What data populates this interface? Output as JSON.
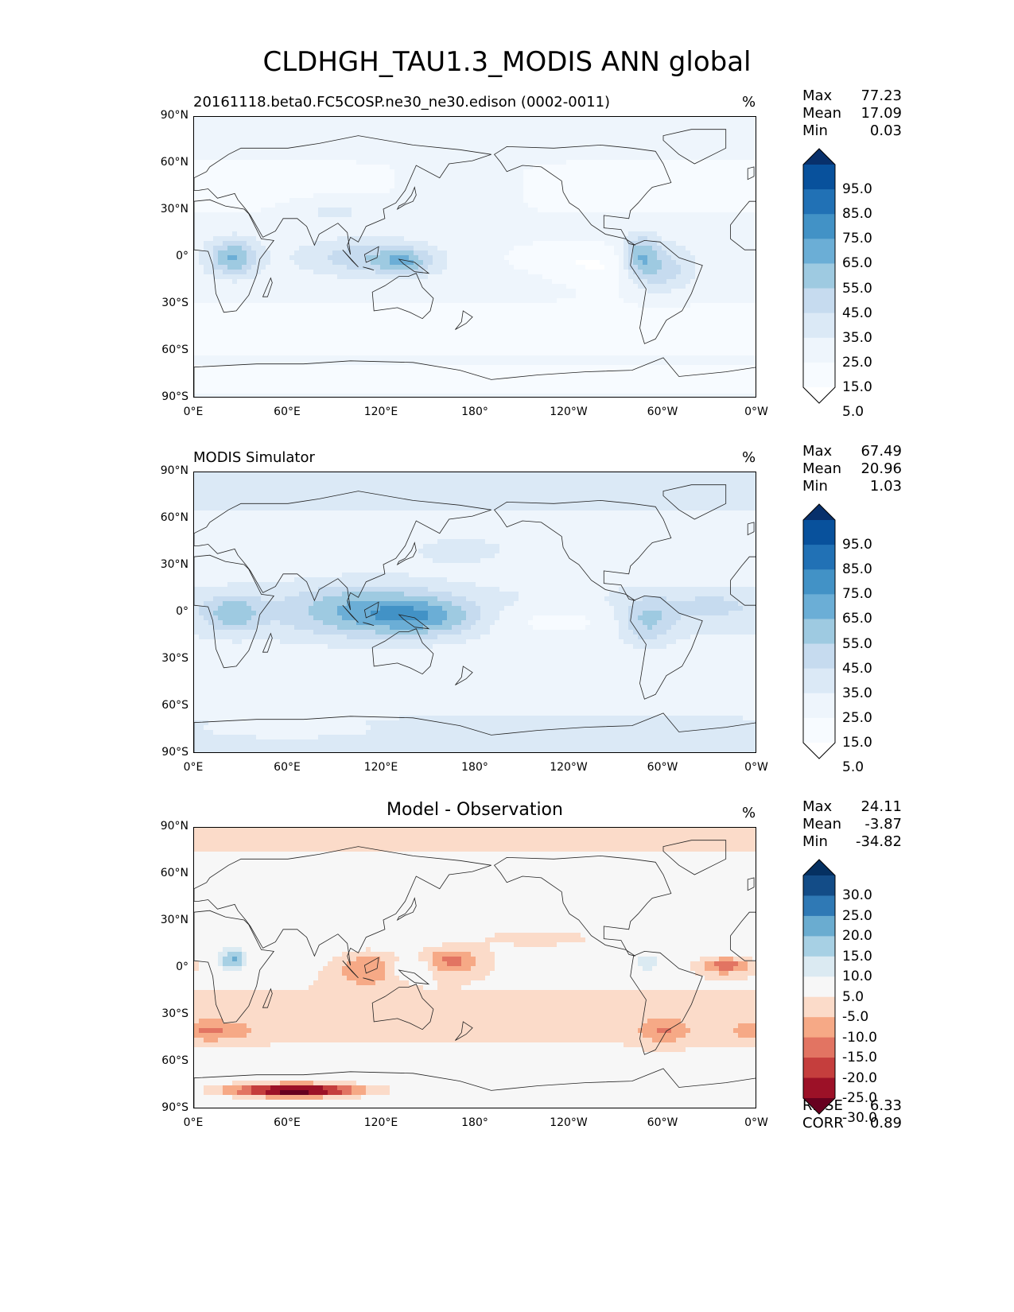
{
  "figure": {
    "title": "CLDHGH_TAU1.3_MODIS ANN global"
  },
  "chart_data": [
    {
      "type": "heatmap",
      "title": "20161118.beta0.FC5COSP.ne30_ne30.edison (0002-0011)",
      "units": "%",
      "stats": [
        {
          "label": "Max",
          "value": "77.23"
        },
        {
          "label": "Mean",
          "value": "17.09"
        },
        {
          "label": "Min",
          "value": "0.03"
        }
      ],
      "colorbar": {
        "levels": [
          "95.0",
          "85.0",
          "75.0",
          "65.0",
          "55.0",
          "45.0",
          "35.0",
          "25.0",
          "15.0",
          "5.0"
        ],
        "colors": [
          "#08306b",
          "#08519c",
          "#2171b5",
          "#4292c6",
          "#6baed6",
          "#9ecae1",
          "#c6dbef",
          "#dbe9f6",
          "#eef5fc",
          "#f7fbff",
          "#ffffff"
        ]
      },
      "x_ticks": [
        "0°E",
        "60°E",
        "120°E",
        "180°",
        "120°W",
        "60°W",
        "0°W"
      ],
      "y_ticks": [
        "90°N",
        "60°N",
        "30°N",
        "0°",
        "30°S",
        "60°S",
        "90°S"
      ]
    },
    {
      "type": "heatmap",
      "title": "MODIS Simulator",
      "units": "%",
      "stats": [
        {
          "label": "Max",
          "value": "67.49"
        },
        {
          "label": "Mean",
          "value": "20.96"
        },
        {
          "label": "Min",
          "value": "1.03"
        }
      ],
      "colorbar": {
        "levels": [
          "95.0",
          "85.0",
          "75.0",
          "65.0",
          "55.0",
          "45.0",
          "35.0",
          "25.0",
          "15.0",
          "5.0"
        ],
        "colors": [
          "#08306b",
          "#08519c",
          "#2171b5",
          "#4292c6",
          "#6baed6",
          "#9ecae1",
          "#c6dbef",
          "#dbe9f6",
          "#eef5fc",
          "#f7fbff",
          "#ffffff"
        ]
      },
      "x_ticks": [
        "0°E",
        "60°E",
        "120°E",
        "180°",
        "120°W",
        "60°W",
        "0°W"
      ],
      "y_ticks": [
        "90°N",
        "60°N",
        "30°N",
        "0°",
        "30°S",
        "60°S",
        "90°S"
      ]
    },
    {
      "type": "heatmap",
      "title": "Model - Observation",
      "units": "%",
      "stats": [
        {
          "label": "Max",
          "value": "24.11"
        },
        {
          "label": "Mean",
          "value": "-3.87"
        },
        {
          "label": "Min",
          "value": "-34.82"
        }
      ],
      "extra_stats": [
        {
          "label": "RMSE",
          "value": "6.33"
        },
        {
          "label": "CORR",
          "value": "0.89"
        }
      ],
      "colorbar": {
        "levels": [
          "30.0",
          "25.0",
          "20.0",
          "15.0",
          "10.0",
          "5.0",
          "-5.0",
          "-10.0",
          "-15.0",
          "-20.0",
          "-25.0",
          "-30.0"
        ],
        "colors": [
          "#053061",
          "#134c87",
          "#2f79b5",
          "#6aacd0",
          "#a7d0e4",
          "#dbeaf2",
          "#f7f7f7",
          "#fbdbc9",
          "#f6a986",
          "#e27462",
          "#c53e3d",
          "#9c1127",
          "#67001f"
        ]
      },
      "x_ticks": [
        "0°E",
        "60°E",
        "120°E",
        "180°",
        "120°W",
        "60°W",
        "0°W"
      ],
      "y_ticks": [
        "90°N",
        "60°N",
        "30°N",
        "0°",
        "30°S",
        "60°S",
        "90°S"
      ]
    }
  ]
}
